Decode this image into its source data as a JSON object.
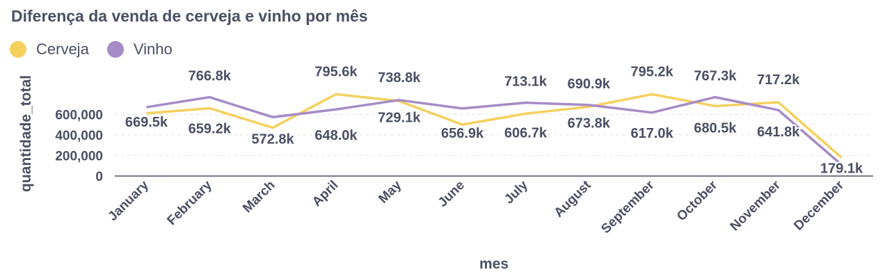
{
  "chart_data": {
    "type": "line",
    "title": "Diferença da venda de cerveja e vinho por mês",
    "xlabel": "mes",
    "ylabel": "quantidade_total",
    "categories": [
      "January",
      "February",
      "March",
      "April",
      "May",
      "June",
      "July",
      "August",
      "September",
      "October",
      "November",
      "December"
    ],
    "ylim": [
      0,
      900000
    ],
    "yticks": [
      {
        "value": 0,
        "label": "0"
      },
      {
        "value": 200000,
        "label": "200,000"
      },
      {
        "value": 400000,
        "label": "400,000"
      },
      {
        "value": 600000,
        "label": "600,000"
      }
    ],
    "grid": true,
    "legend_position": "top-left",
    "series": [
      {
        "name": "Cerveja",
        "color": "#f5d05e",
        "values": [
          610000,
          659200,
          470000,
          795600,
          729100,
          500000,
          606700,
          673800,
          795200,
          680500,
          717200,
          179100
        ],
        "labels": [
          "",
          "659.2k",
          "",
          "795.6k",
          "729.1k",
          "",
          "606.7k",
          "673.8k",
          "795.2k",
          "680.5k",
          "717.2k",
          "179.1k"
        ]
      },
      {
        "name": "Vinho",
        "color": "#a68bc6",
        "values": [
          669500,
          766800,
          572800,
          648000,
          738800,
          656900,
          713100,
          690900,
          617000,
          767300,
          641800,
          110000
        ],
        "labels": [
          "669.5k",
          "766.8k",
          "572.8k",
          "648.0k",
          "738.8k",
          "656.9k",
          "713.1k",
          "690.9k",
          "617.0k",
          "767.3k",
          "641.8k",
          ""
        ]
      }
    ]
  }
}
